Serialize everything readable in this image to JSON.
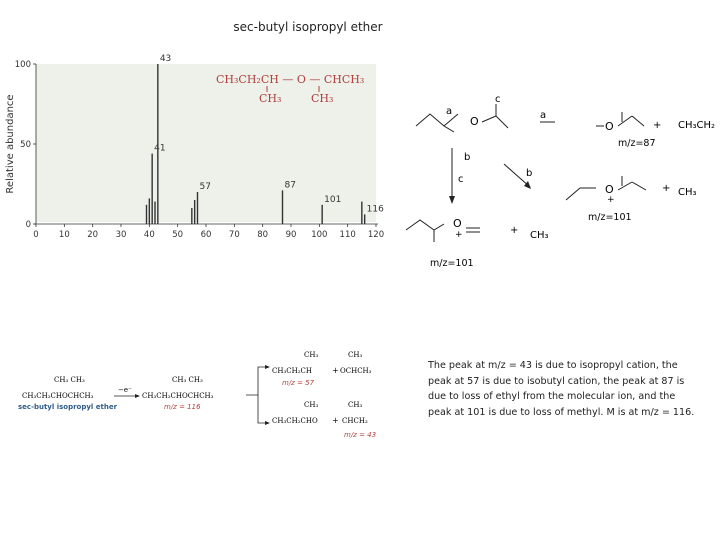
{
  "page": {
    "title": "sec-butyl isopropyl ether",
    "caption": "The peak at m/z = 43 is due to isopropyl cation, the peak at 57 is due to isobutyl cation, the peak at 87 is due to loss of ethyl from the molecular ion, and the peak at 101 is due to loss of methyl. M is at m/z = 116."
  },
  "chart_data": {
    "type": "bar",
    "title": "",
    "xlabel": "",
    "ylabel": "Relative abundance",
    "xlim": [
      0,
      120
    ],
    "ylim": [
      0,
      100
    ],
    "xticks": [
      "0",
      "10",
      "20",
      "30",
      "40",
      "50",
      "60",
      "70",
      "80",
      "90",
      "100",
      "110",
      "120"
    ],
    "yticks": [
      "0",
      "50",
      "100"
    ],
    "grid": false,
    "peaks": [
      {
        "x": 39,
        "y": 12
      },
      {
        "x": 40,
        "y": 16
      },
      {
        "x": 41,
        "y": 44,
        "label": "41"
      },
      {
        "x": 42,
        "y": 14
      },
      {
        "x": 43,
        "y": 100,
        "label": "43"
      },
      {
        "x": 55,
        "y": 10
      },
      {
        "x": 56,
        "y": 15
      },
      {
        "x": 57,
        "y": 20,
        "label": "57"
      },
      {
        "x": 87,
        "y": 21,
        "label": "87"
      },
      {
        "x": 101,
        "y": 12,
        "label": "101"
      },
      {
        "x": 115,
        "y": 14
      },
      {
        "x": 116,
        "y": 6,
        "label": "116"
      }
    ],
    "structure_inset": {
      "main": "CH₃CH₂CH — O — CHCH₃",
      "sub1": "CH₃",
      "sub2": "CH₃"
    }
  },
  "mechanism": {
    "label_a1": "a",
    "label_c1": "c",
    "label_a2": "a",
    "label_b1": "b",
    "label_c2": "c",
    "label_b2": "b",
    "oxygen": "O",
    "charge_plus": "+",
    "ethyl_radical": "CH₃CH₂",
    "methyl_radical": "CH₃",
    "mz_87": "m/z=87",
    "mz_101_right": "m/z=101",
    "mz_101_bottom": "m/z=101"
  },
  "fragmentation": {
    "reactant_top": "CH₃ CH₃",
    "reactant_main": "CH₃CH₂CHOCHCH₃",
    "reactant_name": "sec-butyl isopropyl ether",
    "electron": "−e⁻",
    "ion_top": "CH₃ CH₃",
    "ion_main": "CH₃CH₂CHOCHCH₃",
    "ion_mz": "m/z = 116",
    "prod1_top": "CH₃",
    "prod1_main": "CH₃CH₂CH",
    "prod1_mz": "m/z = 57",
    "prod1_partner_top": "CH₃",
    "prod1_partner_main": "OCHCH₃",
    "prod2_top": "CH₃",
    "prod2_main": "CH₃CH₂CHO",
    "prod2_partner_top": "CH₃",
    "prod2_partner_main": "CHCH₃",
    "prod2_mz": "m/z = 43",
    "plus": "+"
  }
}
